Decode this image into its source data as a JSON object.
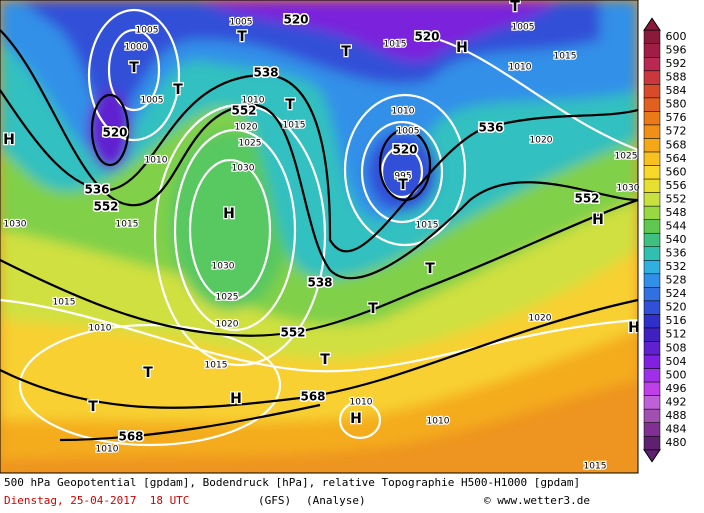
{
  "map": {
    "labels": [
      "520",
      "520",
      "538",
      "552",
      "520",
      "536",
      "552",
      "520",
      "536",
      "552",
      "538",
      "552",
      "568",
      "568",
      "1005",
      "1000",
      "1005",
      "1010",
      "1015",
      "1020",
      "1025",
      "1030",
      "1010",
      "1015",
      "1030",
      "1030",
      "1025",
      "1020",
      "1015",
      "1015",
      "1010",
      "1010",
      "1010",
      "1010",
      "1010",
      "1005",
      "995",
      "1015",
      "1020",
      "1025",
      "1030",
      "1015",
      "1010",
      "1020",
      "1015",
      "1015",
      "1005",
      "1005",
      "T",
      "T",
      "T",
      "T",
      "H",
      "T",
      "H",
      "H",
      "T",
      "T",
      "T",
      "T",
      "T",
      "T",
      "H",
      "H",
      "H",
      "H",
      "T"
    ]
  },
  "legend": {
    "values": [
      600,
      596,
      592,
      588,
      584,
      580,
      576,
      572,
      568,
      564,
      560,
      556,
      552,
      548,
      544,
      540,
      536,
      532,
      528,
      524,
      520,
      516,
      512,
      508,
      504,
      500,
      496,
      492,
      488,
      484,
      480
    ],
    "colors": [
      "#8b1a3a",
      "#a01e46",
      "#b82850",
      "#c8383c",
      "#d84a2a",
      "#e06020",
      "#e87a18",
      "#f09018",
      "#f4a818",
      "#f8c020",
      "#f8d828",
      "#e8e030",
      "#c8e040",
      "#98d840",
      "#60c850",
      "#40c080",
      "#30c0b0",
      "#30b0e0",
      "#3090e8",
      "#3070e0",
      "#3050d8",
      "#3030c8",
      "#4020c0",
      "#6020d0",
      "#8020e0",
      "#a030e8",
      "#c040e8",
      "#c060d8",
      "#a050b0",
      "#803090",
      "#602070"
    ]
  },
  "footer": {
    "description": "500 hPa Geopotential [gpdam], Bodendruck [hPa], relative Topographie H500-H1000 [gpdam]",
    "date": "Dienstag, 25-04-2017  18 UTC",
    "model": "(GFS)",
    "run": "(Analyse)",
    "credit": "© www.wetter3.de"
  }
}
